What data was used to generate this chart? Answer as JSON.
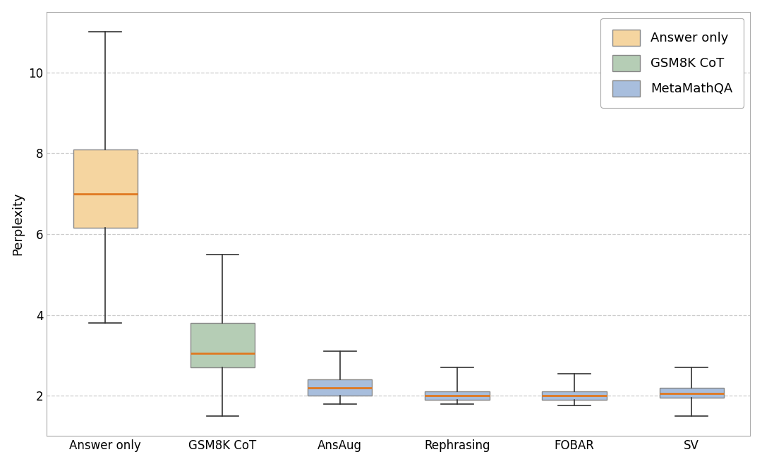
{
  "categories": [
    "Answer only",
    "GSM8K CoT",
    "AnsAug",
    "Rephrasing",
    "FOBAR",
    "SV"
  ],
  "colors": [
    "#f5d5a0",
    "#b5cdb5",
    "#a8bedd",
    "#a8bedd",
    "#a8bedd",
    "#a8bedd"
  ],
  "edge_colors": [
    "#888888",
    "#888888",
    "#888888",
    "#888888",
    "#888888",
    "#888888"
  ],
  "median_color": "#e07820",
  "box_data": [
    {
      "whislo": 3.8,
      "q1": 6.15,
      "med": 7.0,
      "q3": 8.1,
      "whishi": 11.0
    },
    {
      "whislo": 1.5,
      "q1": 2.7,
      "med": 3.05,
      "q3": 3.8,
      "whishi": 5.5
    },
    {
      "whislo": 1.8,
      "q1": 2.0,
      "med": 2.2,
      "q3": 2.4,
      "whishi": 3.1
    },
    {
      "whislo": 1.8,
      "q1": 1.9,
      "med": 2.0,
      "q3": 2.1,
      "whishi": 2.7
    },
    {
      "whislo": 1.75,
      "q1": 1.9,
      "med": 2.0,
      "q3": 2.1,
      "whishi": 2.55
    },
    {
      "whislo": 1.5,
      "q1": 1.95,
      "med": 2.05,
      "q3": 2.2,
      "whishi": 2.7
    }
  ],
  "ylabel": "Perplexity",
  "ylim": [
    1.0,
    11.5
  ],
  "yticks": [
    2,
    4,
    6,
    8,
    10
  ],
  "legend_labels": [
    "Answer only",
    "GSM8K CoT",
    "MetaMathQA"
  ],
  "legend_colors": [
    "#f5d5a0",
    "#b5cdb5",
    "#a8bedd"
  ],
  "legend_edge_colors": [
    "#888888",
    "#888888",
    "#888888"
  ],
  "background_color": "#ffffff",
  "plot_bg_color": "#ffffff",
  "figsize": [
    10.8,
    6.58
  ],
  "dpi": 100
}
